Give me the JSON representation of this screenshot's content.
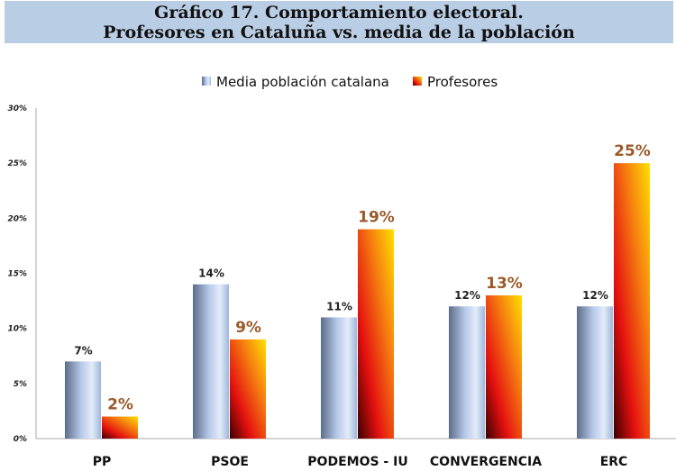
{
  "chart_data": {
    "type": "bar",
    "title_line1": "Gráfico 17. Comportamiento electoral.",
    "title_line2": "Profesores en Cataluña vs. media de la población",
    "categories": [
      "PP",
      "PSOE",
      "PODEMOS - IU",
      "CONVERGENCIA",
      "ERC"
    ],
    "series": [
      {
        "name": "Media población catalana",
        "values": [
          7,
          14,
          11,
          12,
          12
        ],
        "labels": [
          "7%",
          "14%",
          "11%",
          "12%",
          "12%"
        ],
        "color": "#a9c0e4"
      },
      {
        "name": "Profesores",
        "values": [
          2,
          9,
          19,
          13,
          25
        ],
        "labels": [
          "2%",
          "9%",
          "19%",
          "13%",
          "25%"
        ],
        "color": "#f04010"
      }
    ],
    "yticks": [
      "0%",
      "5%",
      "10%",
      "15%",
      "20%",
      "25%",
      "30%"
    ],
    "ylim": [
      0,
      30
    ],
    "legend": "top",
    "grid": false,
    "label_color_profesores": "#9a5a2a"
  }
}
